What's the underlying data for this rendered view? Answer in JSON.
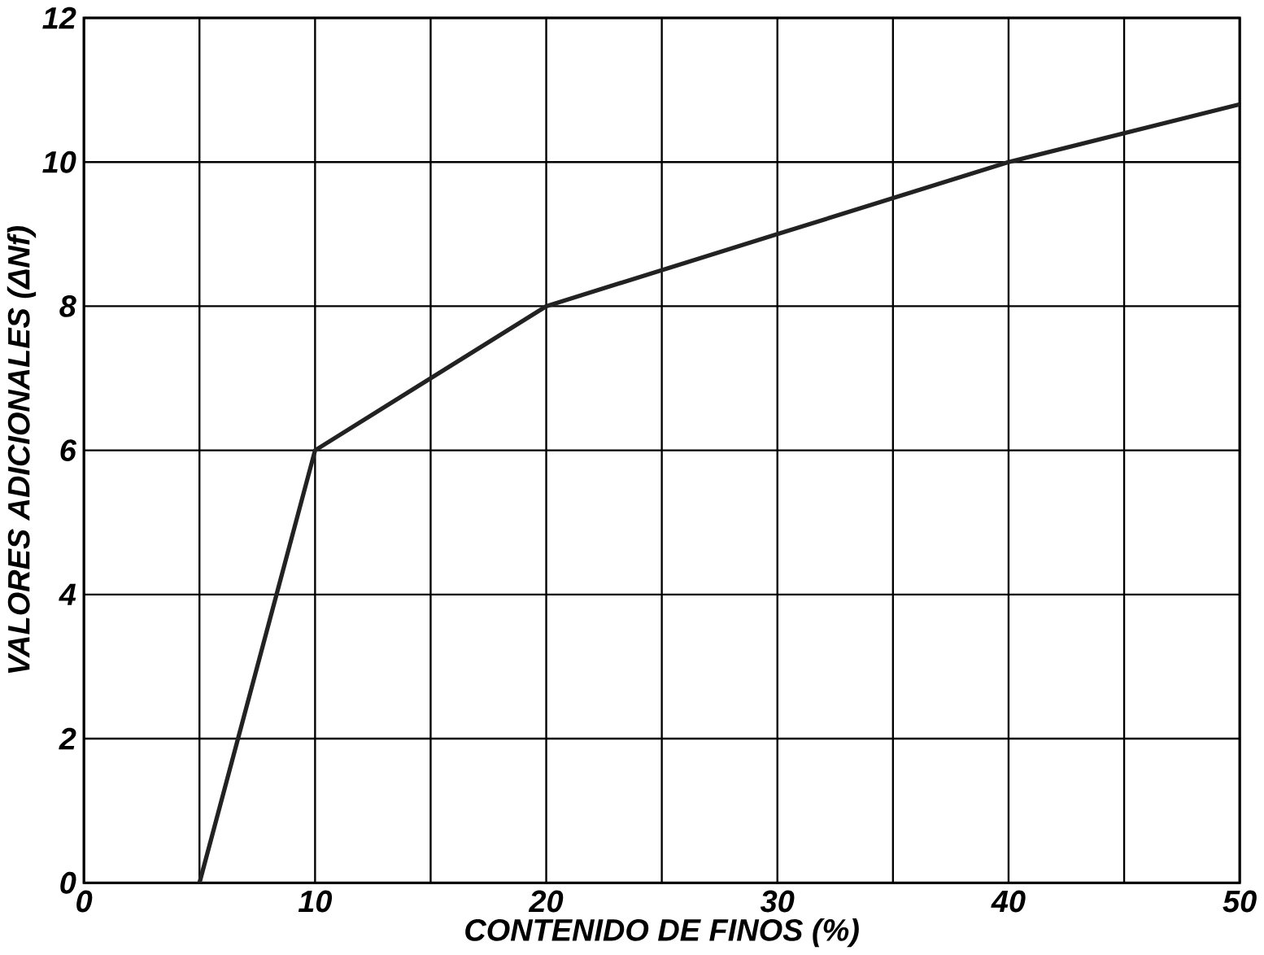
{
  "chart_data": {
    "type": "line",
    "xlabel": "CONTENIDO DE FINOS (%)",
    "ylabel": "VALORES ADICIONALES (ΔNf)",
    "x": [
      5,
      10,
      20,
      30,
      40,
      50
    ],
    "series": [
      {
        "color": "#222222",
        "values": [
          0,
          6,
          8,
          9,
          10,
          10.8
        ]
      }
    ],
    "xlim": [
      0,
      50
    ],
    "ylim": [
      0,
      12
    ],
    "xticks": [
      0,
      {
        "value": 5,
        "label": null
      },
      10,
      {
        "value": 15,
        "label": null
      },
      20,
      {
        "value": 25,
        "label": null
      },
      30,
      {
        "value": 35,
        "label": null
      },
      40,
      {
        "value": 45,
        "label": null
      },
      50
    ],
    "yticks": [
      0,
      2,
      4,
      6,
      8,
      10,
      12
    ],
    "grid": true,
    "marker": "none",
    "line_style": "solid"
  }
}
